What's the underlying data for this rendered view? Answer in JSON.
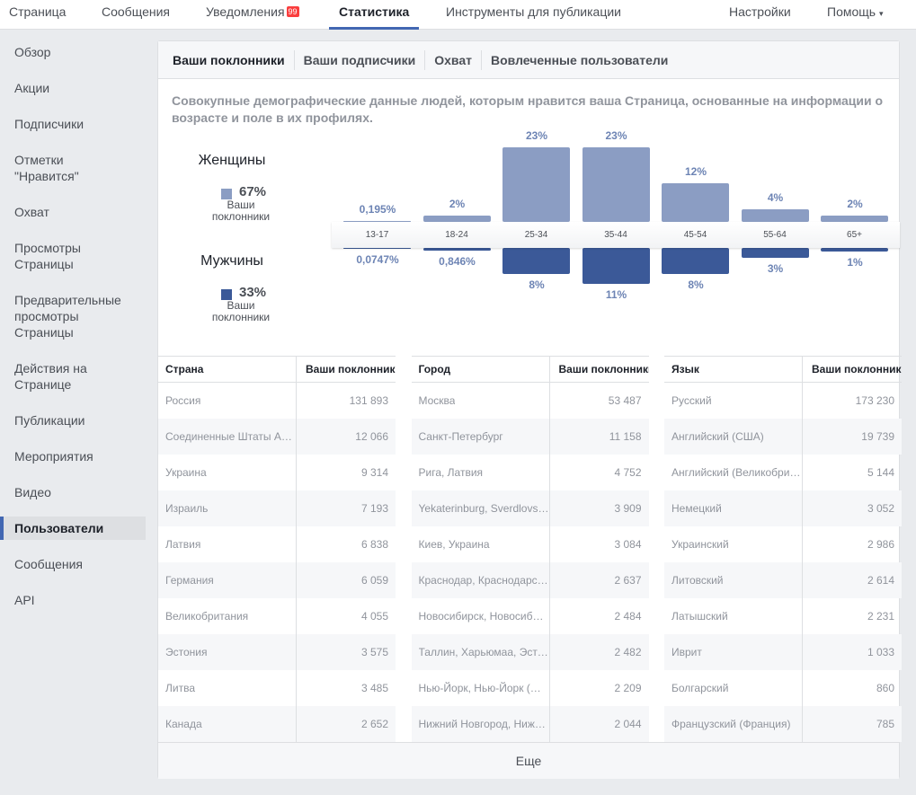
{
  "topnav": {
    "items": [
      "Страница",
      "Сообщения",
      "Уведомления",
      "Статистика",
      "Инструменты для публикации"
    ],
    "badge": "99",
    "settings": "Настройки",
    "help": "Помощь",
    "help_caret": "▾"
  },
  "sidebar": [
    "Обзор",
    "Акции",
    "Подписчики",
    "Отметки \"Нравится\"",
    "Охват",
    "Просмотры Страницы",
    "Предварительные просмотры Страницы",
    "Действия на Странице",
    "Публикации",
    "Мероприятия",
    "Видео",
    "Пользователи",
    "Сообщения",
    "API"
  ],
  "tabs": [
    "Ваши поклонники",
    "Ваши подписчики",
    "Охват",
    "Вовлеченные пользователи"
  ],
  "description": "Совокупные демографические данные людей, которым нравится ваша Страница, основанные на информации о возрасте и поле в их профилях.",
  "legend": {
    "women": "Женщины",
    "women_pct": "67%",
    "men": "Мужчины",
    "men_pct": "33%",
    "sub": "Ваши поклонники"
  },
  "colors": {
    "women": "#8b9dc3",
    "men": "#3b5998"
  },
  "chart_data": {
    "type": "bar",
    "categories": [
      "13-17",
      "18-24",
      "25-34",
      "35-44",
      "45-54",
      "55-64",
      "65+"
    ],
    "series": [
      {
        "name": "Женщины",
        "values": [
          0.195,
          2,
          23,
          23,
          12,
          4,
          2
        ],
        "labels": [
          "0,195%",
          "2%",
          "23%",
          "23%",
          "12%",
          "4%",
          "2%"
        ]
      },
      {
        "name": "Мужчины",
        "values": [
          0.0747,
          0.846,
          8,
          11,
          8,
          3,
          1
        ],
        "labels": [
          "0,0747%",
          "0,846%",
          "8%",
          "11%",
          "8%",
          "3%",
          "1%"
        ]
      }
    ]
  },
  "tables": [
    {
      "h1": "Страна",
      "h2": "Ваши поклонники",
      "rows": [
        [
          "Россия",
          "131 893"
        ],
        [
          "Соединенные Штаты Америки",
          "12 066"
        ],
        [
          "Украина",
          "9 314"
        ],
        [
          "Израиль",
          "7 193"
        ],
        [
          "Латвия",
          "6 838"
        ],
        [
          "Германия",
          "6 059"
        ],
        [
          "Великобритания",
          "4 055"
        ],
        [
          "Эстония",
          "3 575"
        ],
        [
          "Литва",
          "3 485"
        ],
        [
          "Канада",
          "2 652"
        ]
      ]
    },
    {
      "h1": "Город",
      "h2": "Ваши поклонники",
      "rows": [
        [
          "Москва",
          "53 487"
        ],
        [
          "Санкт-Петербург",
          "11 158"
        ],
        [
          "Рига, Латвия",
          "4 752"
        ],
        [
          "Yekaterinburg, Sverdlovsk Oblast",
          "3 909"
        ],
        [
          "Киев, Украина",
          "3 084"
        ],
        [
          "Краснодар, Краснодарский край",
          "2 637"
        ],
        [
          "Новосибирск, Новосибирская область",
          "2 484"
        ],
        [
          "Таллин, Харьюмаа, Эстония",
          "2 482"
        ],
        [
          "Нью-Йорк, Нью-Йорк (штат)",
          "2 209"
        ],
        [
          "Нижний Новгород, Нижегородская область",
          "2 044"
        ]
      ]
    },
    {
      "h1": "Язык",
      "h2": "Ваши поклонники",
      "rows": [
        [
          "Русский",
          "173 230"
        ],
        [
          "Английский (США)",
          "19 739"
        ],
        [
          "Английский (Великобритания)",
          "5 144"
        ],
        [
          "Немецкий",
          "3 052"
        ],
        [
          "Украинский",
          "2 986"
        ],
        [
          "Литовский",
          "2 614"
        ],
        [
          "Латышский",
          "2 231"
        ],
        [
          "Иврит",
          "1 033"
        ],
        [
          "Болгарский",
          "860"
        ],
        [
          "Французский (Франция)",
          "785"
        ]
      ]
    }
  ],
  "more": "Еще"
}
